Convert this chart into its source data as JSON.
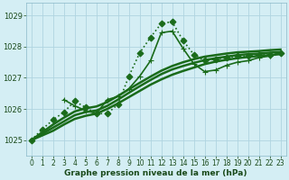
{
  "title": "Graphe pression niveau de la mer (hPa)",
  "background_color": "#d4eef4",
  "plot_bg_color": "#d4eef4",
  "grid_color": "#b0d4e0",
  "line_color": "#1a6b1a",
  "xlim": [
    -0.5,
    23.5
  ],
  "ylim": [
    1024.5,
    1029.4
  ],
  "yticks": [
    1025,
    1026,
    1027,
    1028,
    1029
  ],
  "xticks": [
    0,
    1,
    2,
    3,
    4,
    5,
    6,
    7,
    8,
    9,
    10,
    11,
    12,
    13,
    14,
    15,
    16,
    17,
    18,
    19,
    20,
    21,
    22,
    23
  ],
  "series": [
    {
      "x": [
        0,
        1,
        2,
        3,
        4,
        5,
        6,
        7,
        8,
        9,
        10,
        11,
        12,
        13,
        14,
        15,
        16,
        17,
        18,
        19,
        20,
        21,
        22,
        23
      ],
      "y": [
        1025.0,
        1025.35,
        1025.65,
        1025.9,
        1026.25,
        1026.05,
        1025.85,
        1025.85,
        1026.15,
        1027.05,
        1027.8,
        1028.3,
        1028.75,
        1028.8,
        1028.2,
        1027.75,
        1027.55,
        1027.6,
        1027.65,
        1027.7,
        1027.7,
        1027.75,
        1027.75,
        1027.8
      ],
      "marker": "D",
      "linestyle": ":",
      "linewidth": 1.2,
      "markersize": 3.5,
      "markevery": 1
    },
    {
      "x": [
        3,
        4,
        5,
        6,
        7,
        8,
        9,
        10,
        11,
        12,
        13,
        14,
        15,
        16,
        17,
        18,
        19,
        20,
        21,
        22,
        23
      ],
      "y": [
        1026.3,
        1026.1,
        1025.95,
        1025.85,
        1026.3,
        1026.4,
        1026.65,
        1027.05,
        1027.55,
        1028.45,
        1028.5,
        1027.95,
        1027.45,
        1027.2,
        1027.25,
        1027.4,
        1027.5,
        1027.55,
        1027.65,
        1027.7,
        1027.8
      ],
      "marker": "+",
      "linestyle": "-",
      "linewidth": 1.2,
      "markersize": 5,
      "markevery": 1
    },
    {
      "x": [
        0,
        1,
        2,
        3,
        4,
        5,
        6,
        7,
        8,
        9,
        10,
        11,
        12,
        13,
        14,
        15,
        16,
        17,
        18,
        19,
        20,
        21,
        22,
        23
      ],
      "y": [
        1025.0,
        1025.15,
        1025.3,
        1025.5,
        1025.68,
        1025.78,
        1025.85,
        1026.0,
        1026.18,
        1026.38,
        1026.58,
        1026.78,
        1026.95,
        1027.1,
        1027.22,
        1027.33,
        1027.44,
        1027.52,
        1027.58,
        1027.63,
        1027.67,
        1027.7,
        1027.73,
        1027.76
      ],
      "marker": null,
      "linestyle": "-",
      "linewidth": 1.8,
      "markersize": 0,
      "markevery": 1
    },
    {
      "x": [
        0,
        1,
        2,
        3,
        4,
        5,
        6,
        7,
        8,
        9,
        10,
        11,
        12,
        13,
        14,
        15,
        16,
        17,
        18,
        19,
        20,
        21,
        22,
        23
      ],
      "y": [
        1025.0,
        1025.2,
        1025.4,
        1025.6,
        1025.8,
        1025.9,
        1025.95,
        1026.1,
        1026.3,
        1026.52,
        1026.73,
        1026.93,
        1027.12,
        1027.27,
        1027.38,
        1027.48,
        1027.57,
        1027.63,
        1027.68,
        1027.73,
        1027.76,
        1027.78,
        1027.81,
        1027.83
      ],
      "marker": null,
      "linestyle": "-",
      "linewidth": 1.8,
      "markersize": 0,
      "markevery": 1
    },
    {
      "x": [
        0,
        1,
        2,
        3,
        4,
        5,
        6,
        7,
        8,
        9,
        10,
        11,
        12,
        13,
        14,
        15,
        16,
        17,
        18,
        19,
        20,
        21,
        22,
        23
      ],
      "y": [
        1025.0,
        1025.25,
        1025.5,
        1025.72,
        1025.92,
        1026.02,
        1026.08,
        1026.22,
        1026.42,
        1026.63,
        1026.84,
        1027.04,
        1027.23,
        1027.38,
        1027.5,
        1027.6,
        1027.68,
        1027.73,
        1027.78,
        1027.82,
        1027.84,
        1027.86,
        1027.89,
        1027.91
      ],
      "marker": null,
      "linestyle": "-",
      "linewidth": 1.8,
      "markersize": 0,
      "markevery": 1
    }
  ],
  "tick_fontsize": 5.5,
  "title_fontsize": 6.5,
  "ylabel_fontsize": 6
}
